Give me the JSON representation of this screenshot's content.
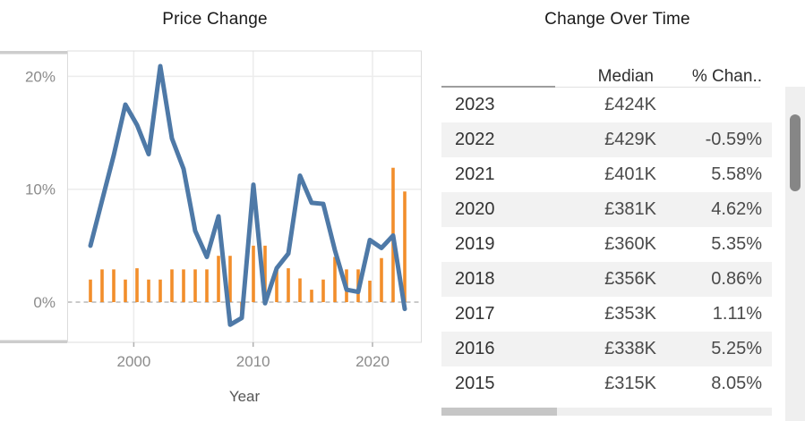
{
  "chart_data": [
    {
      "type": "line",
      "title": "Price Change",
      "xlabel": "Year",
      "x": [
        1996,
        1997,
        1998,
        1999,
        2000,
        2001,
        2002,
        2003,
        2004,
        2005,
        2006,
        2007,
        2008,
        2009,
        2010,
        2011,
        2012,
        2013,
        2014,
        2015,
        2016,
        2017,
        2018,
        2019,
        2020,
        2021,
        2022,
        2023
      ],
      "series": [
        {
          "name": "pct_change_line",
          "mark": "line",
          "color": "#4e79a7",
          "values": [
            5.0,
            9.0,
            13.0,
            17.5,
            15.7,
            13.1,
            20.9,
            14.5,
            11.8,
            6.3,
            4.0,
            7.6,
            -2.0,
            -1.4,
            10.4,
            -0.1,
            3.0,
            4.3,
            11.2,
            8.8,
            8.7,
            4.6,
            1.1,
            0.9,
            5.5,
            4.8,
            5.9,
            -0.6
          ]
        },
        {
          "name": "secondary_pct_bars",
          "mark": "bar",
          "color": "#f28e2b",
          "values": [
            2.0,
            2.9,
            2.9,
            2.0,
            3.0,
            2.0,
            2.0,
            2.9,
            2.9,
            2.9,
            2.9,
            4.1,
            4.1,
            -0.85,
            5.0,
            5.0,
            3.0,
            3.0,
            2.1,
            1.1,
            2.0,
            4.0,
            2.9,
            2.9,
            1.9,
            3.9,
            11.9,
            9.8
          ]
        }
      ],
      "ylim": [
        -3.5,
        22.5
      ],
      "y_ticks": [
        {
          "v": 20,
          "label": "20%"
        },
        {
          "v": 10,
          "label": "10%"
        },
        {
          "v": 0,
          "label": "0%"
        }
      ],
      "x_ticks": [
        {
          "v": 2000,
          "label": "2000"
        },
        {
          "v": 2010,
          "label": "2010"
        },
        {
          "v": 2020,
          "label": "2020"
        }
      ],
      "grid": true,
      "zero_line": "dashed",
      "legend": "none"
    },
    {
      "type": "table",
      "title": "Change Over Time",
      "columns": [
        "",
        "Median",
        "% Chan.."
      ],
      "rows": [
        {
          "year": "2023",
          "median": "£424K",
          "pct_change": ""
        },
        {
          "year": "2022",
          "median": "£429K",
          "pct_change": "-0.59%"
        },
        {
          "year": "2021",
          "median": "£401K",
          "pct_change": "5.58%"
        },
        {
          "year": "2020",
          "median": "£381K",
          "pct_change": "4.62%"
        },
        {
          "year": "2019",
          "median": "£360K",
          "pct_change": "5.35%"
        },
        {
          "year": "2018",
          "median": "£356K",
          "pct_change": "0.86%"
        },
        {
          "year": "2017",
          "median": "£353K",
          "pct_change": "1.11%"
        },
        {
          "year": "2016",
          "median": "£338K",
          "pct_change": "5.25%"
        },
        {
          "year": "2015",
          "median": "£315K",
          "pct_change": "8.05%"
        }
      ]
    }
  ],
  "colors": {
    "line": "#4e79a7",
    "bars": "#f28e2b",
    "grid": "#ececec",
    "zero_line": "#b8b8b8",
    "axis_text": "#8b8b8b",
    "band": "#f2f2f2"
  }
}
